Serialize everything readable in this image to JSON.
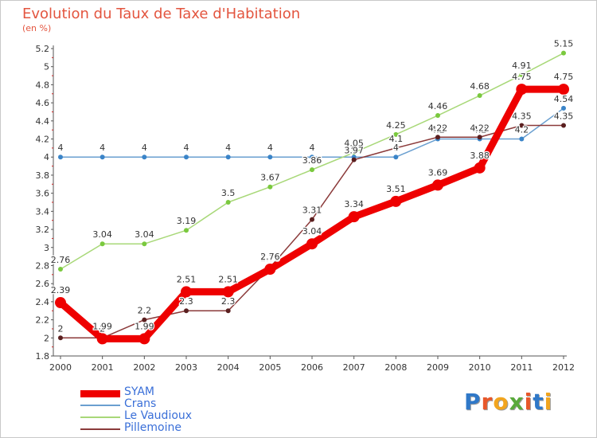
{
  "header": {
    "title": "Evolution du Taux de Taxe d'Habitation",
    "unit": "(en %)"
  },
  "brand": {
    "letters": [
      "P",
      "r",
      "o",
      "x",
      "i",
      "t",
      "i"
    ],
    "colors": [
      "#2f78c8",
      "#e8572a",
      "#f2a51e",
      "#5aaa3c",
      "#e8572a",
      "#2f78c8",
      "#f2a51e"
    ]
  },
  "chart_data": {
    "type": "line",
    "x": [
      "2000",
      "2001",
      "2002",
      "2003",
      "2004",
      "2005",
      "2006",
      "2007",
      "2008",
      "2009",
      "2010",
      "2011",
      "2012"
    ],
    "ylim": [
      1.8,
      5.2
    ],
    "yticks": [
      "1.8",
      "2",
      "2.2",
      "2.4",
      "2.6",
      "2.8",
      "3",
      "3.2",
      "3.4",
      "3.6",
      "3.8",
      "4",
      "4.2",
      "4.4",
      "4.6",
      "4.8",
      "5",
      "5.2"
    ],
    "grid": false,
    "legend_position": "bottom-left",
    "series": [
      {
        "name": "SYAM",
        "color": "#ee0000",
        "values": [
          2.39,
          1.99,
          1.99,
          2.51,
          2.51,
          2.76,
          3.04,
          3.34,
          3.51,
          3.69,
          3.88,
          4.75,
          4.75
        ],
        "labels": [
          "2.39",
          "1.99",
          "1.99",
          "2.51",
          "2.51",
          "2.76",
          "3.04",
          "3.34",
          "3.51",
          "3.69",
          "3.88",
          "4.75",
          "4.75"
        ]
      },
      {
        "name": "Crans",
        "color": "#6a9fd0",
        "values": [
          4,
          4,
          4,
          4,
          4,
          4,
          4,
          4,
          4,
          4.2,
          4.2,
          4.2,
          4.54
        ],
        "labels": [
          "4",
          "4",
          "4",
          "4",
          "4",
          "4",
          "4",
          "4",
          "4",
          "4.2",
          "4.2",
          "4.2",
          "4.54"
        ]
      },
      {
        "name": "Le Vaudioux",
        "color": "#a8d878",
        "values": [
          2.76,
          3.04,
          3.04,
          3.19,
          3.5,
          3.67,
          3.86,
          4.05,
          4.25,
          4.46,
          4.68,
          4.91,
          5.15
        ],
        "labels": [
          "2.76",
          "3.04",
          "3.04",
          "3.19",
          "3.5",
          "3.67",
          "3.86",
          "4.05",
          "4.25",
          "4.46",
          "4.68",
          "4.91",
          "5.15"
        ]
      },
      {
        "name": "Pillemoine",
        "color": "#8b3a3a",
        "values": [
          2,
          2,
          2.2,
          2.3,
          2.3,
          2.78,
          3.31,
          3.97,
          4.1,
          4.22,
          4.22,
          4.35,
          4.35
        ],
        "labels": [
          "2",
          "2",
          "2.2",
          "2.3",
          "2.3",
          "2.78",
          "3.31",
          "3.97",
          "4.1",
          "4.22",
          "4.22",
          "4.35",
          "4.35"
        ]
      }
    ]
  }
}
